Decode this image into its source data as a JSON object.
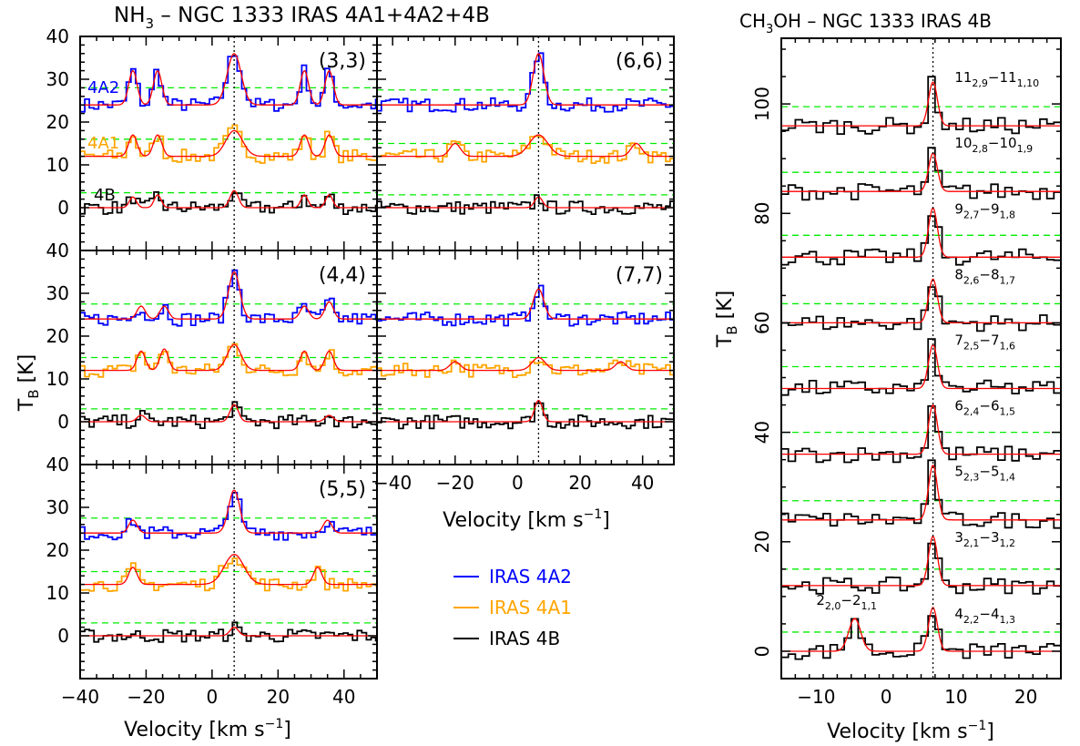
{
  "colors": {
    "4A2": "#0000ff",
    "4A1": "#ffa500",
    "4B": "#000000",
    "fit": "#ff0000",
    "threshold": "#00ee00"
  },
  "chart_data": [
    {
      "type": "line",
      "title": "NH3 – NGC 1333 IRAS 4A1+4A2+4B",
      "xlabel": "Velocity [km s-1]",
      "ylabel": "TB [K]",
      "xlim": [
        -40,
        50
      ],
      "ylim": [
        -10,
        40
      ],
      "x_ticks": [
        -40,
        -20,
        0,
        20,
        40
      ],
      "x_tick_labels": [
        "−40",
        "−20",
        "0",
        "20",
        "40"
      ],
      "y_ticks": [
        0,
        10,
        20,
        30,
        40
      ],
      "y_tick_labels": [
        "0",
        "10",
        "20",
        "30",
        "40"
      ],
      "systemic_velocity": 6.7,
      "legend": {
        "position": "lower-right",
        "entries": [
          {
            "key": "4A2",
            "label": "IRAS 4A2"
          },
          {
            "key": "4A1",
            "label": "IRAS 4A1"
          },
          {
            "key": "4B",
            "label": "IRAS 4B"
          }
        ]
      },
      "series_labels": {
        "4A2": "4A2",
        "4A1": "4A1",
        "4B": "4B"
      },
      "panels": [
        {
          "label": "(3,3)",
          "xlim": [
            -40,
            50
          ],
          "series": [
            {
              "key": "4A2",
              "baseline": 24,
              "threshold": 28,
              "lines": [
                [
                  -24,
                  8,
                  3
                ],
                [
                  -16.5,
                  8,
                  3
                ],
                [
                  6.7,
                  12,
                  5
                ],
                [
                  28,
                  8,
                  3
                ],
                [
                  35.5,
                  8,
                  3
                ]
              ]
            },
            {
              "key": "4A1",
              "baseline": 12,
              "threshold": 16,
              "lines": [
                [
                  -24,
                  5,
                  3
                ],
                [
                  -16.5,
                  5,
                  3
                ],
                [
                  6.7,
                  6,
                  6
                ],
                [
                  28,
                  5,
                  3
                ],
                [
                  35.5,
                  5,
                  3
                ]
              ]
            },
            {
              "key": "4B",
              "baseline": 0,
              "threshold": 3.5,
              "lines": [
                [
                  -24,
                  2.5,
                  2.5
                ],
                [
                  -16.5,
                  3,
                  2.5
                ],
                [
                  6.7,
                  4,
                  3
                ],
                [
                  28,
                  3,
                  2.5
                ],
                [
                  35.5,
                  3,
                  2.5
                ]
              ]
            }
          ]
        },
        {
          "label": "(6,6)",
          "xlim": [
            -45,
            50
          ],
          "series": [
            {
              "key": "4A2",
              "baseline": 24,
              "threshold": 27.5,
              "lines": [
                [
                  6.7,
                  12,
                  4
                ]
              ]
            },
            {
              "key": "4A1",
              "baseline": 12,
              "threshold": 15,
              "lines": [
                [
                  -20,
                  3,
                  4
                ],
                [
                  6.7,
                  5,
                  7
                ],
                [
                  38,
                  3,
                  4
                ]
              ]
            },
            {
              "key": "4B",
              "baseline": 0,
              "threshold": 3,
              "lines": [
                [
                  6.7,
                  2.5,
                  3
                ]
              ]
            }
          ]
        },
        {
          "label": "(4,4)",
          "xlim": [
            -40,
            50
          ],
          "series": [
            {
              "key": "4A2",
              "baseline": 24,
              "threshold": 27.5,
              "lines": [
                [
                  -21.5,
                  3,
                  3
                ],
                [
                  -14.5,
                  3,
                  3
                ],
                [
                  6.7,
                  11,
                  4
                ],
                [
                  28,
                  3,
                  3
                ],
                [
                  35.5,
                  4,
                  3
                ]
              ]
            },
            {
              "key": "4A1",
              "baseline": 12,
              "threshold": 15,
              "lines": [
                [
                  -21.5,
                  4.5,
                  3
                ],
                [
                  -14.5,
                  5,
                  3
                ],
                [
                  6.7,
                  6,
                  5
                ],
                [
                  28,
                  4.5,
                  3
                ],
                [
                  35.5,
                  4.5,
                  3
                ]
              ]
            },
            {
              "key": "4B",
              "baseline": 0,
              "threshold": 3,
              "lines": [
                [
                  -21.5,
                  1.5,
                  3
                ],
                [
                  6.7,
                  4,
                  3
                ],
                [
                  35.5,
                  1.5,
                  3
                ]
              ]
            }
          ]
        },
        {
          "label": "(7,7)",
          "xlim": [
            -45,
            50
          ],
          "series": [
            {
              "key": "4A2",
              "baseline": 24,
              "threshold": 27.5,
              "lines": [
                [
                  6.7,
                  7,
                  4
                ]
              ]
            },
            {
              "key": "4A1",
              "baseline": 12,
              "threshold": 15,
              "lines": [
                [
                  -20,
                  2,
                  4
                ],
                [
                  6.7,
                  3,
                  5
                ],
                [
                  33,
                  2,
                  4
                ]
              ]
            },
            {
              "key": "4B",
              "baseline": 0,
              "threshold": 3,
              "lines": [
                [
                  6.7,
                  5,
                  3
                ]
              ]
            }
          ]
        },
        {
          "label": "(5,5)",
          "xlim": [
            -40,
            50
          ],
          "series": [
            {
              "key": "4A2",
              "baseline": 24,
              "threshold": 27.5,
              "lines": [
                [
                  -24,
                  3,
                  3
                ],
                [
                  6.7,
                  10,
                  4
                ],
                [
                  35,
                  3,
                  3
                ]
              ]
            },
            {
              "key": "4A1",
              "baseline": 12,
              "threshold": 15,
              "lines": [
                [
                  -24,
                  4,
                  3
                ],
                [
                  6.7,
                  7,
                  7
                ],
                [
                  32,
                  4,
                  3
                ]
              ]
            },
            {
              "key": "4B",
              "baseline": 0,
              "threshold": 3,
              "lines": [
                [
                  6.7,
                  2,
                  3
                ]
              ]
            }
          ]
        }
      ]
    },
    {
      "type": "line",
      "title": "CH3OH – NGC 1333 IRAS 4B",
      "xlabel": "Velocity [km s-1]",
      "ylabel": "TB [K]",
      "xlim": [
        -15,
        25
      ],
      "ylim": [
        -5,
        112
      ],
      "x_ticks": [
        -10,
        0,
        10,
        20
      ],
      "x_tick_labels": [
        "−10",
        "0",
        "10",
        "20"
      ],
      "y_ticks": [
        0,
        20,
        40,
        60,
        80,
        100
      ],
      "y_tick_labels": [
        "0",
        "20",
        "40",
        "60",
        "80",
        "100"
      ],
      "systemic_velocity": 6.7,
      "series": [
        {
          "name": "11(2,9)-11(1,10)",
          "baseline": 96,
          "threshold": 99.5,
          "peak": 8,
          "width": 1.5
        },
        {
          "name": "10(2,8)-10(1,9)",
          "baseline": 84,
          "threshold": 87.5,
          "peak": 7,
          "width": 1.5
        },
        {
          "name": "9(2,7)-9(1,8)",
          "baseline": 72,
          "threshold": 76,
          "peak": 9,
          "width": 1.5
        },
        {
          "name": "8(2,6)-8(1,7)",
          "baseline": 60,
          "threshold": 63.5,
          "peak": 8,
          "width": 1.5
        },
        {
          "name": "7(2,5)-7(1,6)",
          "baseline": 48,
          "threshold": 52,
          "peak": 8,
          "width": 1.5
        },
        {
          "name": "6(2,4)-6(1,5)",
          "baseline": 36,
          "threshold": 40,
          "peak": 9,
          "width": 1.5
        },
        {
          "name": "5(2,3)-5(1,4)",
          "baseline": 24,
          "threshold": 27.5,
          "peak": 10,
          "width": 1.5
        },
        {
          "name": "3(2,1)-3(1,2)",
          "baseline": 12,
          "threshold": 15,
          "peak": 9,
          "width": 1.5
        },
        {
          "name": "4(2,2)-4(1,3)",
          "baseline": 0,
          "threshold": 3.5,
          "peak": 8,
          "width": 1.5,
          "extra_line": {
            "name": "2(2,0)-2(1,1)",
            "center": -4.5,
            "peak": 6,
            "width": 2
          }
        }
      ],
      "line_labels": [
        {
          "main": "11",
          "sub": "2,9",
          "main2": "−11",
          "sub2": "1,10",
          "y": 104
        },
        {
          "main": "10",
          "sub": "2,8",
          "main2": "−10",
          "sub2": "1,9",
          "y": 92
        },
        {
          "main": "9",
          "sub": "2,7",
          "main2": "−9",
          "sub2": "1,8",
          "y": 80
        },
        {
          "main": "8",
          "sub": "2,6",
          "main2": "−8",
          "sub2": "1,7",
          "y": 68
        },
        {
          "main": "7",
          "sub": "2,5",
          "main2": "−7",
          "sub2": "1,6",
          "y": 56
        },
        {
          "main": "6",
          "sub": "2,4",
          "main2": "−6",
          "sub2": "1,5",
          "y": 44
        },
        {
          "main": "5",
          "sub": "2,3",
          "main2": "−5",
          "sub2": "1,4",
          "y": 32
        },
        {
          "main": "3",
          "sub": "2,1",
          "main2": "−3",
          "sub2": "1,2",
          "y": 20
        },
        {
          "main": "4",
          "sub": "2,2",
          "main2": "−4",
          "sub2": "1,3",
          "y": 6
        },
        {
          "main": "2",
          "sub": "2,0",
          "main2": "−2",
          "sub2": "1,1",
          "y": 8.5
        }
      ]
    }
  ]
}
